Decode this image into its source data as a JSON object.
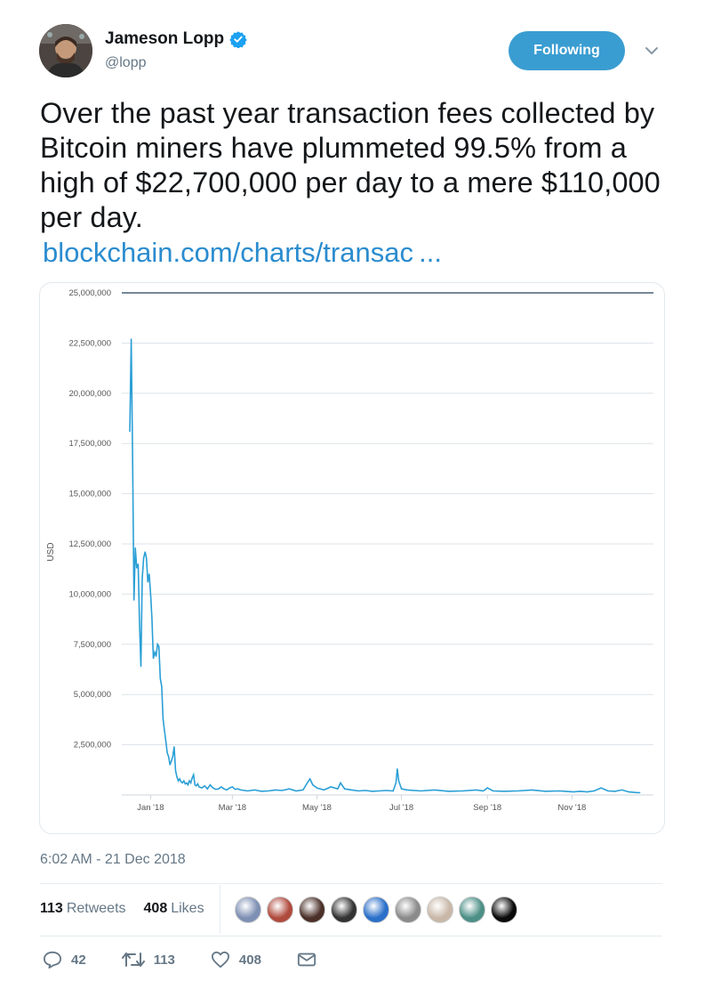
{
  "author": {
    "name": "Jameson Lopp",
    "handle": "@lopp",
    "verified": true,
    "verified_color": "#1da1f2",
    "avatar_icon": "profile-photo"
  },
  "follow_button": {
    "label": "Following",
    "color": "#3a9dd1"
  },
  "menu_icon": "chevron-down-icon",
  "tweet": {
    "text": "Over the past year transaction fees collected by Bitcoin miners have plummeted 99.5% from a high of $22,700,000 per day to a mere $110,000 per day.",
    "link": "blockchain.com/charts/transac ..."
  },
  "chart_data": {
    "type": "line",
    "title": "",
    "xlabel": "",
    "ylabel": "USD",
    "ylim": [
      0,
      25000000
    ],
    "yticks": [
      "25,000,000",
      "22,500,000",
      "20,000,000",
      "17,500,000",
      "15,000,000",
      "12,500,000",
      "10,000,000",
      "7,500,000",
      "5,000,000",
      "2,500,000"
    ],
    "ytick_values": [
      25000000,
      22500000,
      20000000,
      17500000,
      15000000,
      12500000,
      10000000,
      7500000,
      5000000,
      2500000
    ],
    "xticks": [
      "Jan '18",
      "Mar '18",
      "May '18",
      "Jul '18",
      "Sep '18",
      "Nov '18"
    ],
    "xtick_days": [
      15,
      74,
      135,
      196,
      258,
      319
    ],
    "xlim_days": [
      0,
      372
    ],
    "line_color": "#2a9fd6",
    "grid": true,
    "series": [
      {
        "x": [
          0,
          1,
          2,
          3,
          4,
          5,
          6,
          7,
          8,
          9,
          10,
          11,
          12,
          13,
          14,
          15,
          16,
          17,
          18,
          19,
          20,
          21,
          22,
          23,
          24,
          25,
          26,
          27,
          28,
          29,
          30,
          31,
          32,
          33,
          34,
          35,
          36,
          37,
          38,
          39,
          40,
          41,
          42,
          43,
          44,
          45,
          46,
          47,
          48,
          49,
          50,
          52,
          54,
          56,
          58,
          60,
          62,
          64,
          66,
          68,
          70,
          72,
          74,
          76,
          78,
          80,
          85,
          90,
          95,
          100,
          105,
          110,
          115,
          120,
          125,
          128,
          130,
          132,
          135,
          140,
          145,
          150,
          152,
          155,
          160,
          165,
          170,
          175,
          180,
          185,
          190,
          192,
          193,
          194,
          196,
          200,
          210,
          220,
          230,
          240,
          250,
          255,
          258,
          262,
          270,
          280,
          290,
          300,
          310,
          320,
          325,
          330,
          335,
          340,
          345,
          350,
          355,
          360,
          365,
          368
        ],
        "values": [
          18100000,
          22700000,
          17000000,
          9700000,
          12300000,
          11300000,
          11500000,
          8600000,
          6400000,
          10800000,
          11800000,
          12100000,
          11800000,
          10600000,
          11000000,
          10000000,
          8800000,
          6800000,
          7100000,
          6900000,
          7500000,
          7400000,
          5800000,
          5400000,
          3800000,
          3200000,
          2700000,
          2100000,
          1900000,
          1500000,
          1700000,
          1900000,
          2400000,
          1200000,
          900000,
          700000,
          800000,
          650000,
          600000,
          700000,
          550000,
          600000,
          500000,
          700000,
          600000,
          850000,
          1000000,
          500000,
          450000,
          550000,
          400000,
          350000,
          450000,
          300000,
          500000,
          350000,
          280000,
          300000,
          400000,
          300000,
          250000,
          350000,
          400000,
          280000,
          300000,
          250000,
          200000,
          250000,
          180000,
          200000,
          250000,
          220000,
          300000,
          200000,
          250000,
          600000,
          800000,
          500000,
          350000,
          250000,
          400000,
          300000,
          600000,
          300000,
          250000,
          200000,
          220000,
          180000,
          200000,
          220000,
          200000,
          600000,
          1300000,
          700000,
          300000,
          250000,
          200000,
          250000,
          180000,
          200000,
          250000,
          200000,
          350000,
          200000,
          180000,
          200000,
          250000,
          180000,
          200000,
          150000,
          180000,
          150000,
          200000,
          350000,
          200000,
          180000,
          250000,
          150000,
          120000,
          110000
        ]
      }
    ]
  },
  "timestamp": "6:02 AM - 21 Dec 2018",
  "stats": {
    "retweets_count": "113",
    "retweets_label": "Retweets",
    "likes_count": "408",
    "likes_label": "Likes"
  },
  "likers": [
    {
      "icon": "flag-avatar",
      "color": "#7d8fb3"
    },
    {
      "icon": "cartoon-avatar",
      "color": "#b04a3d"
    },
    {
      "icon": "face-avatar",
      "color": "#4a3028"
    },
    {
      "icon": "dark-avatar",
      "color": "#333333"
    },
    {
      "icon": "blue-avatar",
      "color": "#2a6fc9"
    },
    {
      "icon": "grey-avatar",
      "color": "#8a8a8a"
    },
    {
      "icon": "person-avatar",
      "color": "#c9b8a8"
    },
    {
      "icon": "teal-avatar",
      "color": "#4c8f86"
    },
    {
      "icon": "logo-avatar",
      "color": "#0a0a0a"
    }
  ],
  "actions": {
    "reply_count": "42",
    "retweet_count": "113",
    "like_count": "408"
  }
}
